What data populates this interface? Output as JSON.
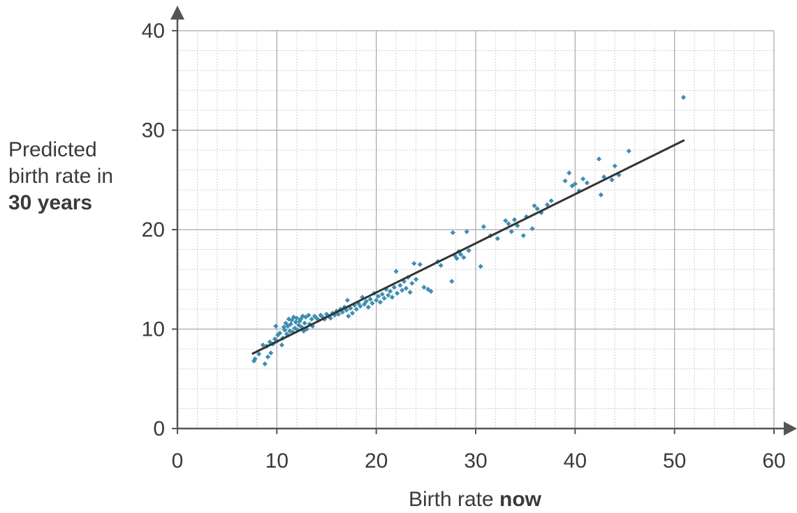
{
  "chart_data": {
    "type": "scatter",
    "title": "",
    "ylabel": {
      "line1": "Predicted",
      "line2": "birth rate in",
      "line3": "30 years"
    },
    "xlabel": {
      "normal": "Birth rate ",
      "bold": "now"
    },
    "xlim": [
      0,
      60
    ],
    "ylim": [
      0,
      40
    ],
    "x_ticks": [
      0,
      10,
      20,
      30,
      40,
      50,
      60
    ],
    "y_ticks": [
      0,
      10,
      20,
      30,
      40
    ],
    "x_tick_labels": [
      "0",
      "10",
      "20",
      "30",
      "40",
      "50",
      "60"
    ],
    "y_tick_labels": [
      "0",
      "10",
      "20",
      "30",
      "40"
    ],
    "grid": true,
    "point_color": "#3d8fb0",
    "line_color": "#333333",
    "trend_line": {
      "x": [
        7.5,
        51.0
      ],
      "y": [
        7.5,
        29.0
      ]
    },
    "points": [
      [
        7.7,
        6.8
      ],
      [
        7.8,
        7.0
      ],
      [
        8.2,
        7.5
      ],
      [
        8.6,
        8.4
      ],
      [
        8.8,
        6.5
      ],
      [
        9.0,
        8.3
      ],
      [
        9.1,
        7.2
      ],
      [
        9.3,
        8.7
      ],
      [
        9.4,
        7.6
      ],
      [
        9.6,
        8.5
      ],
      [
        9.8,
        9.0
      ],
      [
        9.9,
        10.3
      ],
      [
        10.0,
        8.8
      ],
      [
        10.1,
        9.4
      ],
      [
        10.3,
        9.6
      ],
      [
        10.5,
        8.4
      ],
      [
        10.6,
        9.1
      ],
      [
        10.7,
        10.2
      ],
      [
        10.8,
        9.9
      ],
      [
        10.9,
        10.6
      ],
      [
        11.0,
        9.5
      ],
      [
        11.1,
        10.3
      ],
      [
        11.2,
        11.0
      ],
      [
        11.3,
        9.8
      ],
      [
        11.4,
        10.5
      ],
      [
        11.5,
        10.9
      ],
      [
        11.6,
        9.7
      ],
      [
        11.7,
        11.2
      ],
      [
        11.8,
        10.1
      ],
      [
        11.9,
        10.7
      ],
      [
        12.0,
        11.1
      ],
      [
        12.1,
        9.9
      ],
      [
        12.2,
        10.4
      ],
      [
        12.3,
        10.8
      ],
      [
        12.4,
        11.0
      ],
      [
        12.5,
        10.2
      ],
      [
        12.6,
        11.3
      ],
      [
        12.7,
        9.8
      ],
      [
        12.8,
        10.6
      ],
      [
        12.9,
        11.2
      ],
      [
        13.0,
        10.0
      ],
      [
        13.2,
        11.4
      ],
      [
        13.3,
        10.5
      ],
      [
        13.5,
        11.0
      ],
      [
        13.6,
        10.3
      ],
      [
        13.8,
        11.3
      ],
      [
        14.0,
        11.1
      ],
      [
        14.2,
        10.9
      ],
      [
        14.4,
        11.4
      ],
      [
        14.6,
        11.2
      ],
      [
        14.8,
        11.0
      ],
      [
        15.0,
        11.5
      ],
      [
        15.2,
        11.3
      ],
      [
        15.4,
        11.1
      ],
      [
        15.6,
        11.6
      ],
      [
        15.8,
        11.4
      ],
      [
        16.0,
        11.8
      ],
      [
        16.2,
        11.5
      ],
      [
        16.4,
        12.0
      ],
      [
        16.6,
        11.7
      ],
      [
        16.8,
        12.2
      ],
      [
        17.0,
        11.9
      ],
      [
        17.1,
        12.9
      ],
      [
        17.2,
        11.3
      ],
      [
        17.4,
        12.1
      ],
      [
        17.6,
        11.6
      ],
      [
        17.8,
        12.4
      ],
      [
        18.0,
        12.0
      ],
      [
        18.2,
        12.6
      ],
      [
        18.4,
        12.3
      ],
      [
        18.6,
        13.2
      ],
      [
        18.8,
        12.5
      ],
      [
        19.0,
        12.8
      ],
      [
        19.2,
        12.2
      ],
      [
        19.4,
        13.0
      ],
      [
        19.6,
        12.6
      ],
      [
        19.8,
        13.6
      ],
      [
        20.0,
        12.9
      ],
      [
        20.2,
        13.3
      ],
      [
        20.4,
        12.7
      ],
      [
        20.6,
        13.5
      ],
      [
        20.8,
        13.1
      ],
      [
        21.0,
        14.0
      ],
      [
        21.2,
        13.4
      ],
      [
        21.4,
        13.8
      ],
      [
        21.6,
        13.2
      ],
      [
        21.8,
        14.2
      ],
      [
        22.0,
        15.8
      ],
      [
        22.1,
        13.6
      ],
      [
        22.4,
        14.4
      ],
      [
        22.6,
        13.9
      ],
      [
        22.8,
        14.8
      ],
      [
        23.0,
        14.1
      ],
      [
        23.2,
        15.2
      ],
      [
        23.4,
        13.7
      ],
      [
        23.6,
        14.6
      ],
      [
        23.8,
        16.6
      ],
      [
        24.0,
        15.0
      ],
      [
        24.4,
        16.5
      ],
      [
        24.8,
        14.2
      ],
      [
        25.2,
        14.0
      ],
      [
        25.5,
        13.8
      ],
      [
        26.2,
        16.8
      ],
      [
        26.5,
        16.4
      ],
      [
        27.6,
        14.8
      ],
      [
        27.7,
        19.7
      ],
      [
        27.9,
        17.4
      ],
      [
        28.1,
        17.1
      ],
      [
        28.3,
        17.8
      ],
      [
        28.5,
        17.5
      ],
      [
        28.8,
        17.2
      ],
      [
        29.1,
        19.8
      ],
      [
        29.3,
        17.9
      ],
      [
        30.5,
        16.3
      ],
      [
        30.8,
        20.3
      ],
      [
        31.5,
        19.4
      ],
      [
        32.2,
        19.1
      ],
      [
        33.0,
        20.9
      ],
      [
        33.3,
        20.6
      ],
      [
        33.6,
        19.8
      ],
      [
        33.9,
        21.0
      ],
      [
        34.2,
        20.4
      ],
      [
        34.8,
        19.4
      ],
      [
        35.1,
        21.3
      ],
      [
        35.7,
        20.1
      ],
      [
        35.9,
        22.4
      ],
      [
        36.2,
        22.1
      ],
      [
        36.6,
        21.7
      ],
      [
        37.2,
        22.5
      ],
      [
        37.6,
        22.9
      ],
      [
        39.0,
        24.9
      ],
      [
        39.4,
        25.7
      ],
      [
        39.7,
        24.4
      ],
      [
        40.0,
        24.6
      ],
      [
        40.4,
        23.9
      ],
      [
        40.8,
        25.1
      ],
      [
        41.2,
        24.7
      ],
      [
        42.4,
        27.1
      ],
      [
        42.6,
        23.5
      ],
      [
        42.9,
        25.3
      ],
      [
        43.7,
        25.0
      ],
      [
        44.0,
        26.4
      ],
      [
        44.4,
        25.5
      ],
      [
        45.4,
        27.9
      ],
      [
        50.9,
        33.3
      ]
    ]
  }
}
